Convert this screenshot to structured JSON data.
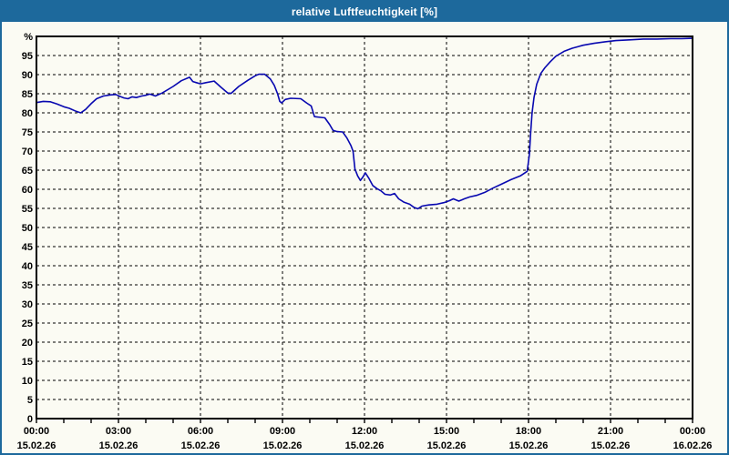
{
  "window": {
    "title": "relative Luftfeuchtigkeit [%]"
  },
  "colors": {
    "title_bar": "#1d699c",
    "window_border": "#1d699c",
    "background": "#fbfbf3",
    "plot_background": "#fdfdf7",
    "grid": "#000000",
    "axis_text": "#000000",
    "line": "#0808b0",
    "title_text": "#ffffff"
  },
  "chart_data": {
    "type": "line",
    "title": "relative Luftfeuchtigkeit [%]",
    "ylabel": "%",
    "y_axis_unit_label": "%",
    "ylim": [
      0,
      100
    ],
    "y_tick_step": 5,
    "y_ticks": [
      0,
      5,
      10,
      15,
      20,
      25,
      30,
      35,
      40,
      45,
      50,
      55,
      60,
      65,
      70,
      75,
      80,
      85,
      90,
      95
    ],
    "xlim_hours": [
      0,
      24
    ],
    "x_minor_tick_hours": 1,
    "grid": "dashed",
    "legend": "none",
    "x_major_ticks": [
      {
        "hours": 0,
        "time": "00:00",
        "date": "15.02.26"
      },
      {
        "hours": 3,
        "time": "03:00",
        "date": "15.02.26"
      },
      {
        "hours": 6,
        "time": "06:00",
        "date": "15.02.26"
      },
      {
        "hours": 9,
        "time": "09:00",
        "date": "15.02.26"
      },
      {
        "hours": 12,
        "time": "12:00",
        "date": "15.02.26"
      },
      {
        "hours": 15,
        "time": "15:00",
        "date": "15.02.26"
      },
      {
        "hours": 18,
        "time": "18:00",
        "date": "15.02.26"
      },
      {
        "hours": 21,
        "time": "21:00",
        "date": "15.02.26"
      },
      {
        "hours": 24,
        "time": "00:00",
        "date": "16.02.26"
      }
    ],
    "series": [
      {
        "name": "relative Luftfeuchtigkeit",
        "unit": "%",
        "color": "#0808b0",
        "points": [
          [
            0.0,
            82.7
          ],
          [
            0.25,
            83.0
          ],
          [
            0.5,
            82.9
          ],
          [
            0.75,
            82.3
          ],
          [
            1.0,
            81.6
          ],
          [
            1.2,
            81.2
          ],
          [
            1.45,
            80.4
          ],
          [
            1.62,
            80.0
          ],
          [
            1.8,
            80.9
          ],
          [
            2.0,
            82.4
          ],
          [
            2.2,
            83.7
          ],
          [
            2.45,
            84.4
          ],
          [
            2.7,
            84.7
          ],
          [
            2.9,
            84.8
          ],
          [
            3.05,
            84.3
          ],
          [
            3.2,
            83.9
          ],
          [
            3.35,
            83.7
          ],
          [
            3.5,
            84.2
          ],
          [
            3.65,
            84.0
          ],
          [
            3.85,
            84.4
          ],
          [
            4.0,
            84.6
          ],
          [
            4.15,
            84.9
          ],
          [
            4.35,
            84.4
          ],
          [
            4.6,
            85.2
          ],
          [
            5.0,
            86.9
          ],
          [
            5.3,
            88.4
          ],
          [
            5.6,
            89.3
          ],
          [
            5.72,
            88.2
          ],
          [
            5.85,
            87.9
          ],
          [
            6.0,
            87.6
          ],
          [
            6.2,
            87.9
          ],
          [
            6.5,
            88.3
          ],
          [
            6.75,
            86.7
          ],
          [
            7.0,
            85.2
          ],
          [
            7.12,
            85.1
          ],
          [
            7.4,
            86.9
          ],
          [
            7.73,
            88.5
          ],
          [
            8.0,
            89.7
          ],
          [
            8.13,
            90.1
          ],
          [
            8.35,
            90.1
          ],
          [
            8.55,
            88.9
          ],
          [
            8.7,
            87.2
          ],
          [
            8.82,
            85.0
          ],
          [
            8.9,
            83.0
          ],
          [
            8.97,
            82.6
          ],
          [
            9.1,
            83.5
          ],
          [
            9.3,
            83.8
          ],
          [
            9.67,
            83.7
          ],
          [
            9.9,
            82.5
          ],
          [
            10.05,
            81.8
          ],
          [
            10.17,
            79.0
          ],
          [
            10.4,
            78.8
          ],
          [
            10.55,
            78.7
          ],
          [
            10.72,
            77.0
          ],
          [
            10.85,
            75.4
          ],
          [
            11.0,
            75.1
          ],
          [
            11.2,
            75.0
          ],
          [
            11.35,
            73.5
          ],
          [
            11.5,
            71.5
          ],
          [
            11.58,
            70.0
          ],
          [
            11.65,
            65.3
          ],
          [
            11.75,
            63.5
          ],
          [
            11.85,
            62.3
          ],
          [
            11.95,
            63.3
          ],
          [
            12.03,
            64.3
          ],
          [
            12.15,
            63.0
          ],
          [
            12.3,
            61.0
          ],
          [
            12.45,
            60.2
          ],
          [
            12.6,
            59.6
          ],
          [
            12.75,
            58.7
          ],
          [
            12.95,
            58.5
          ],
          [
            13.1,
            58.9
          ],
          [
            13.25,
            57.5
          ],
          [
            13.45,
            56.6
          ],
          [
            13.65,
            56.1
          ],
          [
            13.8,
            55.3
          ],
          [
            13.95,
            54.9
          ],
          [
            14.1,
            55.6
          ],
          [
            14.35,
            55.9
          ],
          [
            14.65,
            56.1
          ],
          [
            14.9,
            56.5
          ],
          [
            15.1,
            57.0
          ],
          [
            15.25,
            57.5
          ],
          [
            15.45,
            56.9
          ],
          [
            15.65,
            57.5
          ],
          [
            15.85,
            58.0
          ],
          [
            16.1,
            58.4
          ],
          [
            16.4,
            59.2
          ],
          [
            16.7,
            60.3
          ],
          [
            17.0,
            61.3
          ],
          [
            17.35,
            62.5
          ],
          [
            17.7,
            63.5
          ],
          [
            17.95,
            64.7
          ],
          [
            18.03,
            69.0
          ],
          [
            18.08,
            75.0
          ],
          [
            18.13,
            80.0
          ],
          [
            18.2,
            84.0
          ],
          [
            18.3,
            87.5
          ],
          [
            18.45,
            90.3
          ],
          [
            18.6,
            91.8
          ],
          [
            18.8,
            93.4
          ],
          [
            19.0,
            94.8
          ],
          [
            19.3,
            96.1
          ],
          [
            19.6,
            96.9
          ],
          [
            20.0,
            97.7
          ],
          [
            20.4,
            98.2
          ],
          [
            20.8,
            98.6
          ],
          [
            21.2,
            98.9
          ],
          [
            21.7,
            99.1
          ],
          [
            22.2,
            99.3
          ],
          [
            22.7,
            99.3
          ],
          [
            23.2,
            99.4
          ],
          [
            23.6,
            99.4
          ],
          [
            24.0,
            99.5
          ]
        ]
      }
    ]
  }
}
